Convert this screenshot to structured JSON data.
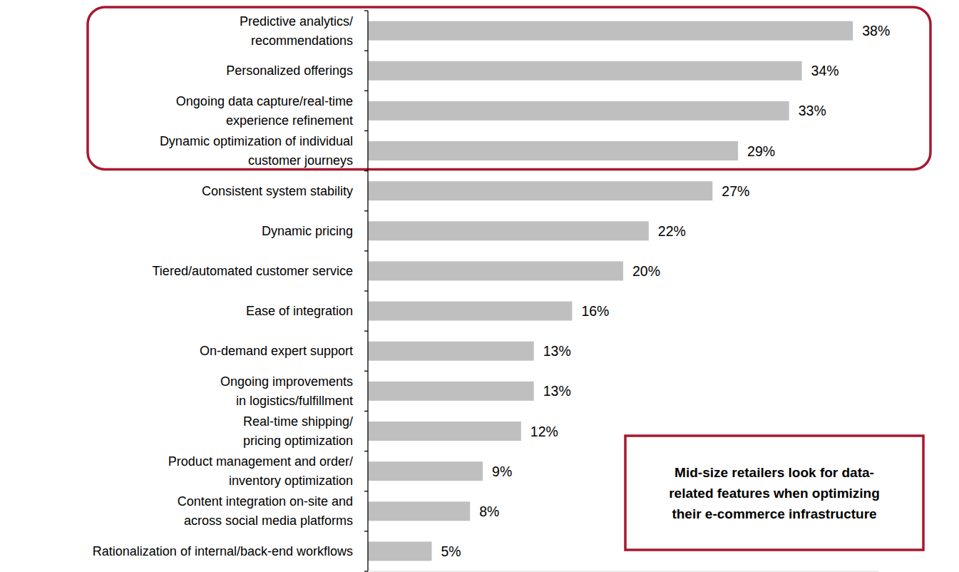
{
  "chart_data": {
    "type": "bar",
    "orientation": "horizontal",
    "categories": [
      "Predictive analytics/\nrecommendations",
      "Personalized offerings",
      "Ongoing data capture/real-time\nexperience refinement",
      "Dynamic optimization of individual\ncustomer journeys",
      "Consistent system stability",
      "Dynamic pricing",
      "Tiered/automated customer service",
      "Ease of integration",
      "On-demand expert support",
      "Ongoing improvements\nin logistics/fulfillment",
      "Real-time shipping/\npricing optimization",
      "Product management and order/\ninventory optimization",
      "Content integration on-site and\nacross social media platforms",
      "Rationalization of internal/back-end workflows"
    ],
    "values": [
      38,
      34,
      33,
      29,
      27,
      22,
      20,
      16,
      13,
      13,
      12,
      9,
      8,
      5
    ],
    "value_labels": [
      "38%",
      "34%",
      "33%",
      "29%",
      "27%",
      "22%",
      "20%",
      "16%",
      "13%",
      "13%",
      "12%",
      "9%",
      "8%",
      "5%"
    ],
    "data_labels": true,
    "color": "#bfbfbf",
    "xlim": [
      0,
      40
    ],
    "tick_labels": false,
    "grid": false,
    "annotation": "Mid-size retailers look for data-\nrelated features when optimizing\ntheir e-commerce infrastructure"
  }
}
